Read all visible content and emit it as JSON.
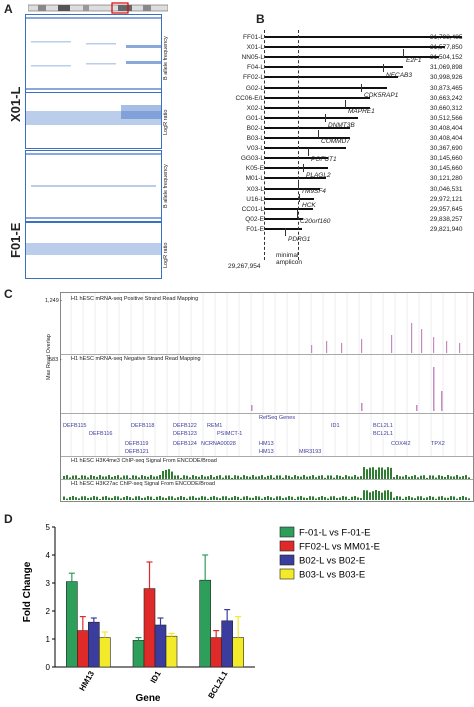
{
  "panelA": {
    "letter": "A",
    "samples": [
      {
        "name": "X01-L",
        "tracks": [
          "B allele frequency",
          "LogR ratio"
        ]
      },
      {
        "name": "F01-E",
        "tracks": [
          "B allele frequency",
          "LogR ratio"
        ]
      }
    ]
  },
  "panelB": {
    "letter": "B",
    "rows": [
      {
        "label": "FF01-L",
        "end": "31,793,485"
      },
      {
        "label": "X01-L",
        "end": "31,577,850"
      },
      {
        "label": "NN05-L",
        "end": "31,504,152"
      },
      {
        "label": "F04-L",
        "end": "31,069,898"
      },
      {
        "label": "FF02-L",
        "end": "30,998,926"
      },
      {
        "label": "G02-L",
        "end": "30,873,465"
      },
      {
        "label": "CC06-E/L",
        "end": "30,663,242"
      },
      {
        "label": "X02-L",
        "end": "30,660,312"
      },
      {
        "label": "G01-L",
        "end": "30,512,566"
      },
      {
        "label": "B02-L",
        "end": "30,408,404"
      },
      {
        "label": "B03-L",
        "end": "30,408,404"
      },
      {
        "label": "V03-L",
        "end": "30,367,690"
      },
      {
        "label": "GG03-L",
        "end": "30,145,660"
      },
      {
        "label": "K05-E",
        "end": "30,145,660"
      },
      {
        "label": "M01-L",
        "end": "30,121,280"
      },
      {
        "label": "X03-L",
        "end": "30,046,531"
      },
      {
        "label": "U16-L",
        "end": "29,972,121"
      },
      {
        "label": "CC01-L",
        "end": "29,957,645"
      },
      {
        "label": "Q02-E",
        "end": "29,838,257"
      },
      {
        "label": "F01-E",
        "end": "29,821,940"
      }
    ],
    "genes": [
      "E2F1",
      "NECAB3",
      "CDK5RAP1",
      "MAPRE1",
      "DNMT3B",
      "COMMD7",
      "POFUT1",
      "PLAGL2",
      "TM9SF4",
      "HCK",
      "C20orf160",
      "PDRG1"
    ],
    "start_label": "29,267,954",
    "amplicon_label": "minimal\namplicon"
  },
  "panelC": {
    "letter": "C",
    "ylabel": "Max Read Overlap",
    "tracks": [
      {
        "title": "H1 hESC mRNA-seq Positive Strand Read Mapping",
        "max": "1,249 -"
      },
      {
        "title": "H1 hESC mRNA-seq Negative Strand Read Mapping",
        "max": "583 -"
      }
    ],
    "refseq_title": "RefSeq Genes",
    "genes": [
      "DEFB115",
      "DEFB116",
      "DEFB118",
      "DEFB119",
      "DEFB121",
      "DEFB122",
      "DEFB123",
      "DEFB124",
      "REM1",
      "PSIMCT-1",
      "NCRNA00028",
      "HM13",
      "HM13",
      "MIR3193",
      "ID1",
      "BCL2L1",
      "BCL2L1",
      "COX4I2",
      "TPX2"
    ],
    "chip_tracks": [
      "H1 hESC H3K4me3 ChIP-seq Signal From ENCODE/Broad",
      "H1 hESC H3K27ac ChIP-seq Signal From ENCODE/Broad"
    ]
  },
  "panelD": {
    "letter": "D",
    "chart_data": {
      "type": "bar",
      "categories": [
        "HM13",
        "ID1",
        "BCL2L1"
      ],
      "xlabel": "Gene",
      "ylabel": "Fold Change",
      "ylim": [
        0,
        5
      ],
      "yticks": [
        "0",
        "1",
        "2",
        "3",
        "4",
        "5"
      ],
      "legend_position": "right",
      "series": [
        {
          "name": "F-01-L vs F-01-E",
          "color": "#2e9e5b",
          "values": [
            3.05,
            0.95,
            3.1
          ],
          "errors": [
            0.3,
            0.1,
            0.9
          ]
        },
        {
          "name": "FF02-L vs MM01-E",
          "color": "#e02a2a",
          "values": [
            1.3,
            2.8,
            1.05
          ],
          "errors": [
            0.5,
            0.95,
            0.25
          ]
        },
        {
          "name": "B02-L vs B02-E",
          "color": "#3a3d9e",
          "values": [
            1.6,
            1.5,
            1.65
          ],
          "errors": [
            0.15,
            0.25,
            0.4
          ]
        },
        {
          "name": "B03-L vs B03-E",
          "color": "#f3ea2a",
          "values": [
            1.05,
            1.1,
            1.05
          ],
          "errors": [
            0.2,
            0.1,
            0.75
          ]
        }
      ]
    }
  }
}
